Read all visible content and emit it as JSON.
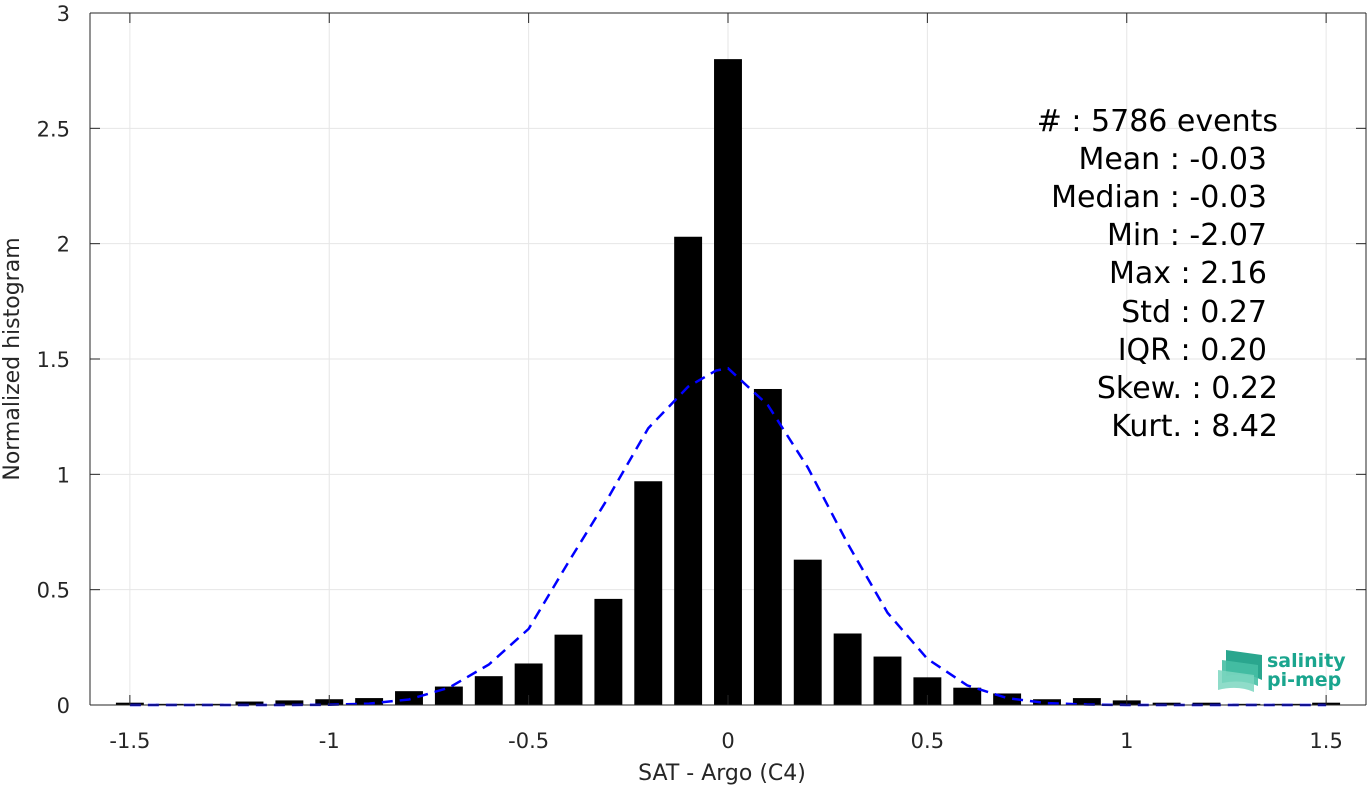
{
  "chart_data": {
    "type": "bar",
    "xlabel": "SAT - Argo (C4)",
    "ylabel": "Normalized histogram",
    "xlim": [
      -1.6,
      1.6
    ],
    "ylim": [
      0,
      3
    ],
    "xticks": [
      -1.5,
      -1,
      -0.5,
      0,
      0.5,
      1,
      1.5
    ],
    "xtick_labels": [
      "-1.5",
      "-1",
      "-0.5",
      "0",
      "0.5",
      "1",
      "1.5"
    ],
    "yticks": [
      0,
      0.5,
      1,
      1.5,
      2,
      2.5,
      3
    ],
    "ytick_labels": [
      "0",
      "0.5",
      "1",
      "1.5",
      "2",
      "2.5",
      "3"
    ],
    "grid": true,
    "bar_width": 0.07,
    "bar_color": "#000000",
    "series": [
      {
        "x": [
          -1.5,
          -1.4,
          -1.3,
          -1.2,
          -1.1,
          -1.0,
          -0.9,
          -0.8,
          -0.7,
          -0.6,
          -0.5,
          -0.4,
          -0.3,
          -0.2,
          -0.1,
          0.0,
          0.1,
          0.2,
          0.3,
          0.4,
          0.5,
          0.6,
          0.7,
          0.8,
          0.9,
          1.0,
          1.1,
          1.2,
          1.3,
          1.4,
          1.5
        ],
        "values": [
          0.01,
          0.005,
          0.005,
          0.015,
          0.02,
          0.025,
          0.03,
          0.06,
          0.08,
          0.125,
          0.18,
          0.305,
          0.46,
          0.97,
          2.03,
          2.8,
          1.37,
          0.63,
          0.31,
          0.21,
          0.12,
          0.075,
          0.05,
          0.025,
          0.03,
          0.02,
          0.01,
          0.01,
          0.005,
          0.005,
          0.01
        ]
      }
    ],
    "fit": {
      "type": "line",
      "style": "dashed",
      "color": "#0000ff",
      "x": [
        -1.5,
        -1.4,
        -1.3,
        -1.2,
        -1.1,
        -1.0,
        -0.9,
        -0.8,
        -0.7,
        -0.6,
        -0.5,
        -0.4,
        -0.3,
        -0.2,
        -0.1,
        -0.03,
        0.0,
        0.1,
        0.2,
        0.3,
        0.4,
        0.5,
        0.6,
        0.7,
        0.8,
        0.9,
        1.0,
        1.1,
        1.2,
        1.3,
        1.4,
        1.5
      ],
      "values": [
        0.0,
        0.0,
        0.0,
        0.0,
        0.0,
        0.001,
        0.006,
        0.024,
        0.075,
        0.175,
        0.33,
        0.62,
        0.9,
        1.2,
        1.38,
        1.45,
        1.46,
        1.3,
        1.03,
        0.7,
        0.4,
        0.2,
        0.085,
        0.03,
        0.008,
        0.002,
        0.0,
        0.0,
        0.0,
        0.0,
        0.0,
        0.0
      ]
    }
  },
  "stats": {
    "count": "#  : 5786 events",
    "mean": "Mean : -0.03",
    "median": "Median : -0.03",
    "min": "Min : -2.07",
    "max": "Max : 2.16",
    "std": "Std : 0.27",
    "iqr": "IQR : 0.20",
    "skew": "Skew. : 0.22",
    "kurt": "Kurt. : 8.42"
  },
  "logo": {
    "line1": "salinity",
    "line2": "pi-mep",
    "color": "#1aa58e"
  }
}
